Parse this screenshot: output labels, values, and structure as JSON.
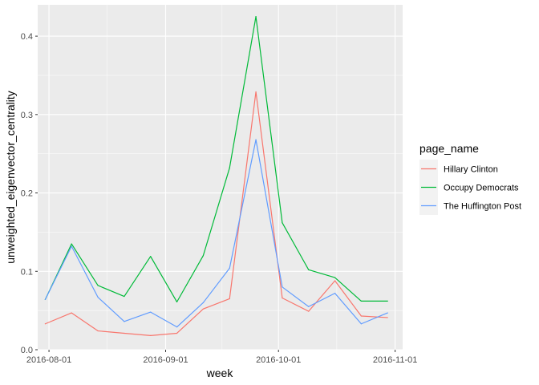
{
  "chart_data": {
    "type": "line",
    "xlabel": "week",
    "ylabel": "unweighted_eigenvector_centrality",
    "x_tick_labels": [
      "2016-08-01",
      "2016-09-01",
      "2016-10-01",
      "2016-11-01"
    ],
    "y_tick_labels": [
      "0.0",
      "0.1",
      "0.2",
      "0.3",
      "0.4"
    ],
    "ylim": [
      0,
      0.44
    ],
    "xlim": [
      "2016-07-29",
      "2016-11-03"
    ],
    "grid": true,
    "legend": {
      "title": "page_name",
      "placement": "right"
    },
    "x": [
      "2016-07-31",
      "2016-08-07",
      "2016-08-14",
      "2016-08-21",
      "2016-08-28",
      "2016-09-04",
      "2016-09-11",
      "2016-09-18",
      "2016-09-25",
      "2016-10-02",
      "2016-10-09",
      "2016-10-16",
      "2016-10-23",
      "2016-10-30"
    ],
    "series": [
      {
        "name": "Hillary Clinton",
        "color": "#F8766D",
        "values": [
          0.033,
          0.047,
          0.024,
          0.021,
          0.018,
          0.021,
          0.052,
          0.065,
          0.329,
          0.066,
          0.049,
          0.088,
          0.043,
          0.041
        ]
      },
      {
        "name": "Occupy Democrats",
        "color": "#00BA38",
        "values": [
          0.064,
          0.135,
          0.082,
          0.068,
          0.119,
          0.061,
          0.12,
          0.232,
          0.425,
          0.162,
          0.102,
          0.092,
          0.062,
          0.062
        ]
      },
      {
        "name": "The Huffington Post",
        "color": "#619CFF",
        "values": [
          0.064,
          0.132,
          0.067,
          0.036,
          0.048,
          0.029,
          0.06,
          0.104,
          0.268,
          0.08,
          0.055,
          0.072,
          0.033,
          0.047
        ]
      }
    ]
  }
}
